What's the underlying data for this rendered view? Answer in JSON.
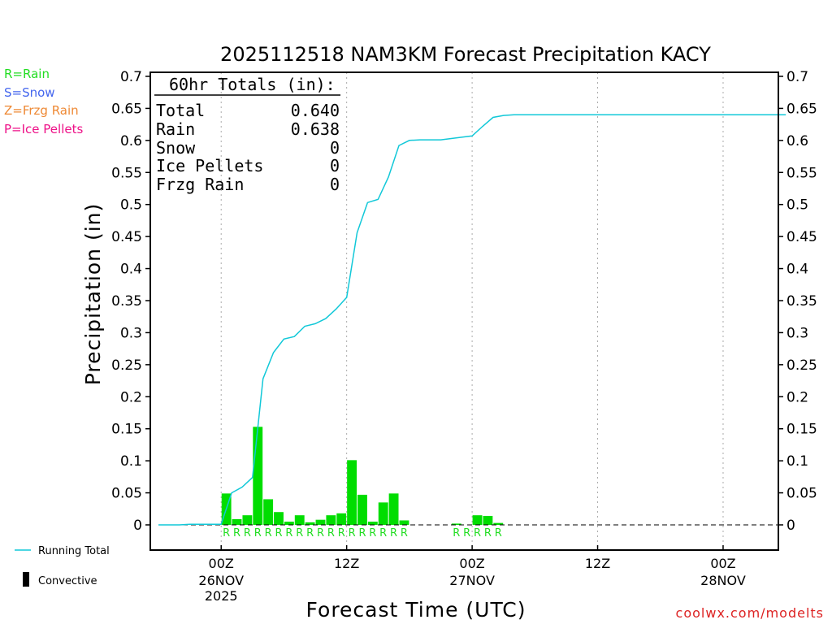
{
  "chart_data": {
    "type": "bar",
    "title": "2025112518 NAM3KM Forecast Precipitation KACY",
    "xlabel": "Forecast Time (UTC)",
    "ylabel": "Precipitation (in)",
    "ylim": [
      -0.04,
      0.71
    ],
    "yticks": [
      0,
      0.05,
      0.1,
      0.15,
      0.2,
      0.25,
      0.3,
      0.35,
      0.4,
      0.45,
      0.5,
      0.55,
      0.6,
      0.65,
      0.7
    ],
    "ytick_labels": [
      "0",
      "0.05",
      "0.1",
      "0.15",
      "0.2",
      "0.25",
      "0.3",
      "0.35",
      "0.4",
      "0.45",
      "0.5",
      "0.55",
      "0.6",
      "0.65",
      "0.7"
    ],
    "x_unit": "forecast hour",
    "xlim": [
      0,
      60
    ],
    "grid": "vertical dotted at 6-hour time marks",
    "x_ticks": [
      {
        "hour": 6,
        "label1": "00Z",
        "label2": "26NOV",
        "label3": "2025"
      },
      {
        "hour": 18,
        "label1": "12Z",
        "label2": "",
        "label3": ""
      },
      {
        "hour": 30,
        "label1": "00Z",
        "label2": "27NOV",
        "label3": ""
      },
      {
        "hour": 42,
        "label1": "12Z",
        "label2": "",
        "label3": ""
      },
      {
        "hour": 54,
        "label1": "00Z",
        "label2": "28NOV",
        "label3": ""
      }
    ],
    "hourly_precip": [
      {
        "hour": 7,
        "value": 0.049
      },
      {
        "hour": 8,
        "value": 0.009
      },
      {
        "hour": 9,
        "value": 0.015
      },
      {
        "hour": 10,
        "value": 0.153
      },
      {
        "hour": 11,
        "value": 0.04
      },
      {
        "hour": 12,
        "value": 0.02
      },
      {
        "hour": 13,
        "value": 0.005
      },
      {
        "hour": 14,
        "value": 0.015
      },
      {
        "hour": 15,
        "value": 0.004
      },
      {
        "hour": 16,
        "value": 0.008
      },
      {
        "hour": 17,
        "value": 0.015
      },
      {
        "hour": 18,
        "value": 0.018
      },
      {
        "hour": 19,
        "value": 0.101
      },
      {
        "hour": 20,
        "value": 0.047
      },
      {
        "hour": 21,
        "value": 0.005
      },
      {
        "hour": 22,
        "value": 0.035
      },
      {
        "hour": 23,
        "value": 0.049
      },
      {
        "hour": 24,
        "value": 0.007
      },
      {
        "hour": 29,
        "value": 0.002
      },
      {
        "hour": 31,
        "value": 0.015
      },
      {
        "hour": 32,
        "value": 0.014
      },
      {
        "hour": 33,
        "value": 0.003
      }
    ],
    "running_total": {
      "name": "Running Total",
      "hours": [
        1,
        2,
        3,
        4,
        5,
        6,
        7,
        8,
        9,
        10,
        11,
        12,
        13,
        14,
        15,
        16,
        17,
        18,
        19,
        20,
        21,
        22,
        23,
        24,
        25,
        26,
        27,
        28,
        29,
        30,
        31,
        32,
        33,
        34,
        35,
        36,
        37,
        38,
        39,
        40,
        41,
        42,
        43,
        44,
        45,
        46,
        47,
        48,
        49,
        50,
        51,
        52,
        53,
        54,
        55,
        56,
        57,
        58,
        59,
        60
      ],
      "values": [
        0,
        0,
        0.001,
        0.001,
        0.001,
        0.001,
        0.05,
        0.059,
        0.074,
        0.228,
        0.269,
        0.29,
        0.294,
        0.31,
        0.314,
        0.322,
        0.337,
        0.355,
        0.456,
        0.503,
        0.508,
        0.543,
        0.592,
        0.6,
        0.601,
        0.601,
        0.601,
        0.603,
        0.605,
        0.607,
        0.622,
        0.636,
        0.639,
        0.64,
        0.64,
        0.64,
        0.64,
        0.64,
        0.64,
        0.64,
        0.64,
        0.64,
        0.64,
        0.64,
        0.64,
        0.64,
        0.64,
        0.64,
        0.64,
        0.64,
        0.64,
        0.64,
        0.64,
        0.64,
        0.64,
        0.64,
        0.64,
        0.64,
        0.64,
        0.64
      ]
    },
    "ptype_labels": [
      {
        "hour": 7,
        "type": "R"
      },
      {
        "hour": 8,
        "type": "R"
      },
      {
        "hour": 9,
        "type": "R"
      },
      {
        "hour": 10,
        "type": "R"
      },
      {
        "hour": 11,
        "type": "R"
      },
      {
        "hour": 12,
        "type": "R"
      },
      {
        "hour": 13,
        "type": "R"
      },
      {
        "hour": 14,
        "type": "R"
      },
      {
        "hour": 15,
        "type": "R"
      },
      {
        "hour": 16,
        "type": "R"
      },
      {
        "hour": 17,
        "type": "R"
      },
      {
        "hour": 18,
        "type": "R"
      },
      {
        "hour": 19,
        "type": "R"
      },
      {
        "hour": 20,
        "type": "R"
      },
      {
        "hour": 21,
        "type": "R"
      },
      {
        "hour": 22,
        "type": "R"
      },
      {
        "hour": 23,
        "type": "R"
      },
      {
        "hour": 24,
        "type": "R"
      },
      {
        "hour": 29,
        "type": "R"
      },
      {
        "hour": 30,
        "type": "R"
      },
      {
        "hour": 31,
        "type": "R"
      },
      {
        "hour": 32,
        "type": "R"
      },
      {
        "hour": 33,
        "type": "R"
      }
    ],
    "totals_box": {
      "heading": "60hr Totals (in):",
      "rows": [
        {
          "label": "Total",
          "value": "0.640"
        },
        {
          "label": "Rain",
          "value": "0.638"
        },
        {
          "label": "Snow",
          "value": "0"
        },
        {
          "label": "Ice Pellets",
          "value": "0"
        },
        {
          "label": "Frzg Rain",
          "value": "0"
        }
      ]
    },
    "ptype_legend": [
      {
        "text": "R=Rain",
        "color": "#22dd22"
      },
      {
        "text": "S=Snow",
        "color": "#4466ee"
      },
      {
        "text": "Z=Frzg Rain",
        "color": "#ee8833"
      },
      {
        "text": "P=Ice Pellets",
        "color": "#ee1188"
      }
    ],
    "line_legend": [
      {
        "text": "Running Total",
        "color": "#11c8d8",
        "kind": "line"
      },
      {
        "text": "Convective",
        "color": "#000000",
        "kind": "block"
      }
    ],
    "credit": "coolwx.com/modelts",
    "colors": {
      "bar": "#00dd00",
      "running_total": "#11c8d8",
      "ptype_rain": "#22dd22",
      "credit": "#dd2222",
      "axis": "#000000",
      "grid": "#aaaaaa"
    }
  }
}
